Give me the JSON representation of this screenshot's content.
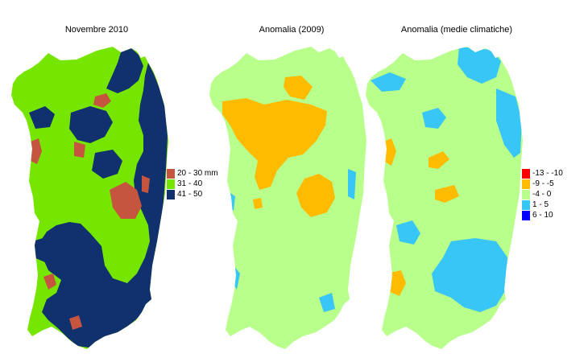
{
  "maps": [
    {
      "title": "Novembre 2010"
    },
    {
      "title": "Anomalia (2009)"
    },
    {
      "title": "Anomalia (medie climatiche)"
    }
  ],
  "legend_precip": [
    {
      "label": "20 - 30 mm",
      "color": "#c5553f"
    },
    {
      "label": "31 - 40",
      "color": "#76e600"
    },
    {
      "label": "41 - 50",
      "color": "#10306e"
    }
  ],
  "legend_anomaly": [
    {
      "label": "-13 - -10",
      "color": "#ff0000"
    },
    {
      "label": "-9 - -5",
      "color": "#ffbb00"
    },
    {
      "label": "-4 - 0",
      "color": "#b8ff8c"
    },
    {
      "label": "1 - 5",
      "color": "#38c6f7"
    },
    {
      "label": "6 - 10",
      "color": "#0000ff"
    }
  ]
}
